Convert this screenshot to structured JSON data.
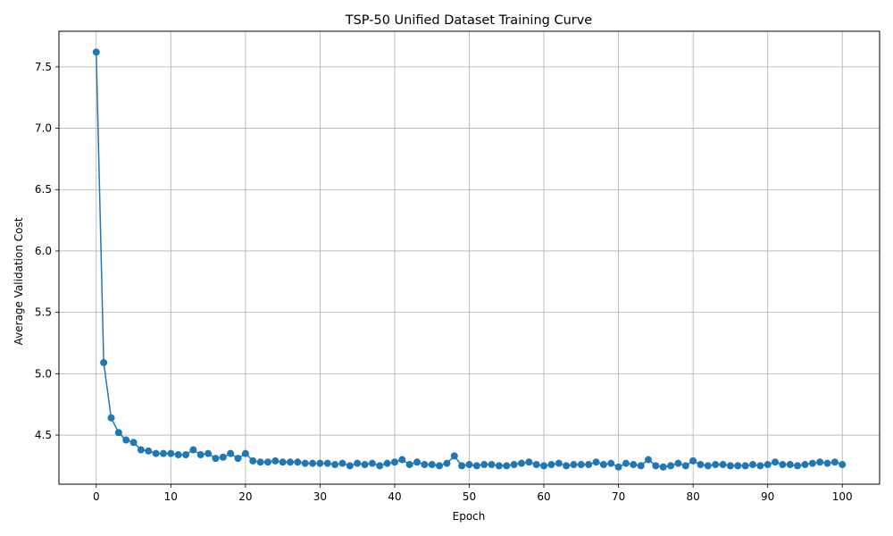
{
  "chart_data": {
    "type": "line",
    "title": "TSP-50 Unified Dataset Training Curve",
    "xlabel": "Epoch",
    "ylabel": "Average Validation Cost",
    "xlim": [
      -5,
      105
    ],
    "ylim": [
      4.1,
      7.79
    ],
    "xticks": [
      0,
      10,
      20,
      30,
      40,
      50,
      60,
      70,
      80,
      90,
      100
    ],
    "yticks": [
      4.5,
      5.0,
      5.5,
      6.0,
      6.5,
      7.0,
      7.5
    ],
    "ytick_labels": [
      "4.5",
      "5.0",
      "5.5",
      "6.0",
      "6.5",
      "7.0",
      "7.5"
    ],
    "grid": true,
    "legend": "none",
    "color": "#1f77b4",
    "series": [
      {
        "x": [
          0,
          1,
          2,
          3,
          4,
          5,
          6,
          7,
          8,
          9,
          10,
          11,
          12,
          13,
          14,
          15,
          16,
          17,
          18,
          19,
          20,
          21,
          22,
          23,
          24,
          25,
          26,
          27,
          28,
          29,
          30,
          31,
          32,
          33,
          34,
          35,
          36,
          37,
          38,
          39,
          40,
          41,
          42,
          43,
          44,
          45,
          46,
          47,
          48,
          49,
          50,
          51,
          52,
          53,
          54,
          55,
          56,
          57,
          58,
          59,
          60,
          61,
          62,
          63,
          64,
          65,
          66,
          67,
          68,
          69,
          70,
          71,
          72,
          73,
          74,
          75,
          76,
          77,
          78,
          79,
          80,
          81,
          82,
          83,
          84,
          85,
          86,
          87,
          88,
          89,
          90,
          91,
          92,
          93,
          94,
          95,
          96,
          97,
          98,
          99,
          100
        ],
        "values": [
          7.62,
          5.09,
          4.64,
          4.52,
          4.46,
          4.44,
          4.38,
          4.37,
          4.35,
          4.35,
          4.35,
          4.34,
          4.34,
          4.38,
          4.34,
          4.35,
          4.31,
          4.32,
          4.35,
          4.31,
          4.35,
          4.29,
          4.28,
          4.28,
          4.29,
          4.28,
          4.28,
          4.28,
          4.27,
          4.27,
          4.27,
          4.27,
          4.26,
          4.27,
          4.25,
          4.27,
          4.26,
          4.27,
          4.25,
          4.27,
          4.28,
          4.3,
          4.26,
          4.28,
          4.26,
          4.26,
          4.25,
          4.27,
          4.33,
          4.25,
          4.26,
          4.25,
          4.26,
          4.26,
          4.25,
          4.25,
          4.26,
          4.27,
          4.28,
          4.26,
          4.25,
          4.26,
          4.27,
          4.25,
          4.26,
          4.26,
          4.26,
          4.28,
          4.26,
          4.27,
          4.24,
          4.27,
          4.26,
          4.25,
          4.3,
          4.25,
          4.24,
          4.25,
          4.27,
          4.25,
          4.29,
          4.26,
          4.25,
          4.26,
          4.26,
          4.25,
          4.25,
          4.25,
          4.26,
          4.25,
          4.26,
          4.28,
          4.26,
          4.26,
          4.25,
          4.26,
          4.27,
          4.28,
          4.27,
          4.28,
          4.26
        ]
      }
    ]
  }
}
